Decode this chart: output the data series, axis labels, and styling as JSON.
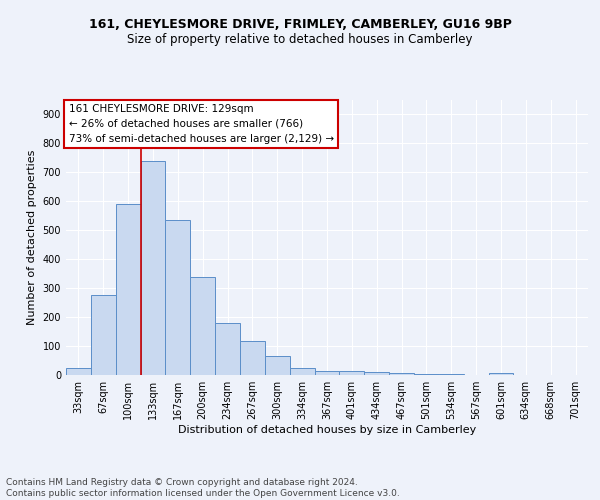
{
  "title1": "161, CHEYLESMORE DRIVE, FRIMLEY, CAMBERLEY, GU16 9BP",
  "title2": "Size of property relative to detached houses in Camberley",
  "xlabel": "Distribution of detached houses by size in Camberley",
  "ylabel": "Number of detached properties",
  "bin_labels": [
    "33sqm",
    "67sqm",
    "100sqm",
    "133sqm",
    "167sqm",
    "200sqm",
    "234sqm",
    "267sqm",
    "300sqm",
    "334sqm",
    "367sqm",
    "401sqm",
    "434sqm",
    "467sqm",
    "501sqm",
    "534sqm",
    "567sqm",
    "601sqm",
    "634sqm",
    "668sqm",
    "701sqm"
  ],
  "bar_heights": [
    25,
    275,
    590,
    740,
    535,
    340,
    178,
    117,
    65,
    25,
    15,
    15,
    10,
    7,
    5,
    5,
    0,
    8,
    0,
    0,
    0
  ],
  "bar_color": "#c9d9f0",
  "bar_edge_color": "#5b8ec9",
  "property_bin_index": 3,
  "vline_color": "#cc0000",
  "annotation_text": "161 CHEYLESMORE DRIVE: 129sqm\n← 26% of detached houses are smaller (766)\n73% of semi-detached houses are larger (2,129) →",
  "annotation_box_color": "#ffffff",
  "annotation_box_edge_color": "#cc0000",
  "ylim": [
    0,
    950
  ],
  "yticks": [
    0,
    100,
    200,
    300,
    400,
    500,
    600,
    700,
    800,
    900
  ],
  "footer": "Contains HM Land Registry data © Crown copyright and database right 2024.\nContains public sector information licensed under the Open Government Licence v3.0.",
  "bg_color": "#eef2fa",
  "grid_color": "#ffffff",
  "title1_fontsize": 9,
  "title2_fontsize": 8.5,
  "xlabel_fontsize": 8,
  "ylabel_fontsize": 8,
  "tick_fontsize": 7,
  "annot_fontsize": 7.5,
  "footer_fontsize": 6.5
}
